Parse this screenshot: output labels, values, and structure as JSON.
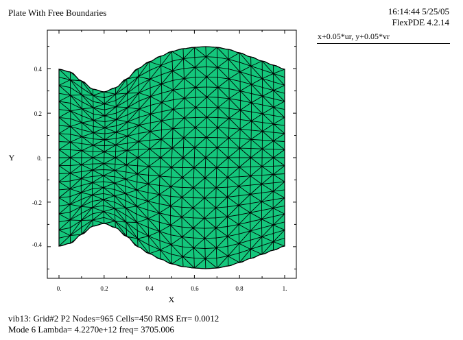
{
  "header": {
    "title": "Plate With Free Boundaries",
    "time_date": "16:14:44 5/25/05",
    "version": "FlexPDE 4.2.14"
  },
  "legend": {
    "expression": "x+0.05*ur, y+0.05*vr"
  },
  "plot": {
    "xlabel": "X",
    "ylabel": "Y",
    "x_ticks": [
      "0.",
      "0.2",
      "0.4",
      "0.6",
      "0.8",
      "1."
    ],
    "y_ticks": [
      "0.4",
      "0.2",
      "0.",
      "-0.2",
      "-0.4"
    ],
    "fill_color": "#14c77c",
    "frame_color": "#000000"
  },
  "footer": {
    "line1": "vib13:  Grid#2  P2  Nodes=965 Cells=450 RMS Err= 0.0012",
    "line2": "Mode 6  Lambda= 4.2270e+12    freq=  3705.006"
  }
}
